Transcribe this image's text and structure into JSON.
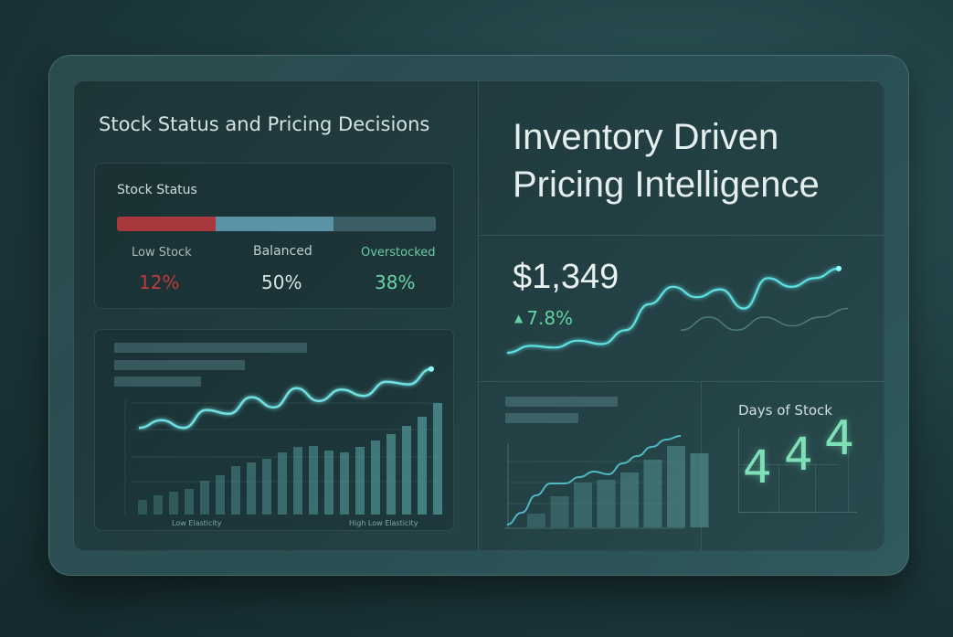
{
  "left": {
    "title": "Stock Status and Pricing Decisions",
    "stock_status": {
      "label": "Stock Status",
      "segments": [
        {
          "name": "Low Stock",
          "value": "12%",
          "color": "#c0393f"
        },
        {
          "name": "Balanced",
          "value": "50%",
          "color": "#5d9fb3"
        },
        {
          "name": "Overstocked",
          "value": "38%",
          "color": "#6cd3ab"
        }
      ],
      "bar_fill": {
        "low": 0.31,
        "balanced": 0.37,
        "overstocked": 0.32
      }
    },
    "elasticity_chart": {
      "x_label_left": "Low Elasticity",
      "x_label_right": "High Low Elasticity",
      "bars": [
        16,
        21,
        25,
        28,
        37,
        43,
        53,
        57,
        61,
        68,
        74,
        75,
        70,
        68,
        74,
        81,
        88,
        97,
        107,
        122
      ],
      "line": [
        37,
        43,
        37,
        51,
        48,
        61,
        53,
        68,
        58,
        67,
        62,
        73,
        71,
        83
      ]
    }
  },
  "right": {
    "title_line1": "Inventory Driven",
    "title_line2": "Pricing Intelligence",
    "price": {
      "value": "$1,349",
      "change": "7.8%",
      "trend": "up",
      "accent": "#5fd3a4"
    },
    "sparkline": {
      "main": [
        0,
        8,
        6,
        14,
        10,
        26,
        56,
        76,
        64,
        73,
        51,
        86,
        76,
        86,
        97
      ],
      "secondary": [
        26,
        41,
        26,
        41,
        31,
        41,
        51
      ]
    },
    "mini_chart": {
      "bars": [
        15,
        34,
        49,
        52,
        60,
        74,
        89,
        81
      ],
      "line": [
        2,
        15,
        34,
        47,
        47,
        54,
        60,
        57,
        69,
        77,
        87,
        95,
        99
      ]
    },
    "days_of_stock": {
      "label": "Days of Stock",
      "values": [
        "4",
        "4",
        "4"
      ],
      "color": "#7fe0b8"
    }
  }
}
